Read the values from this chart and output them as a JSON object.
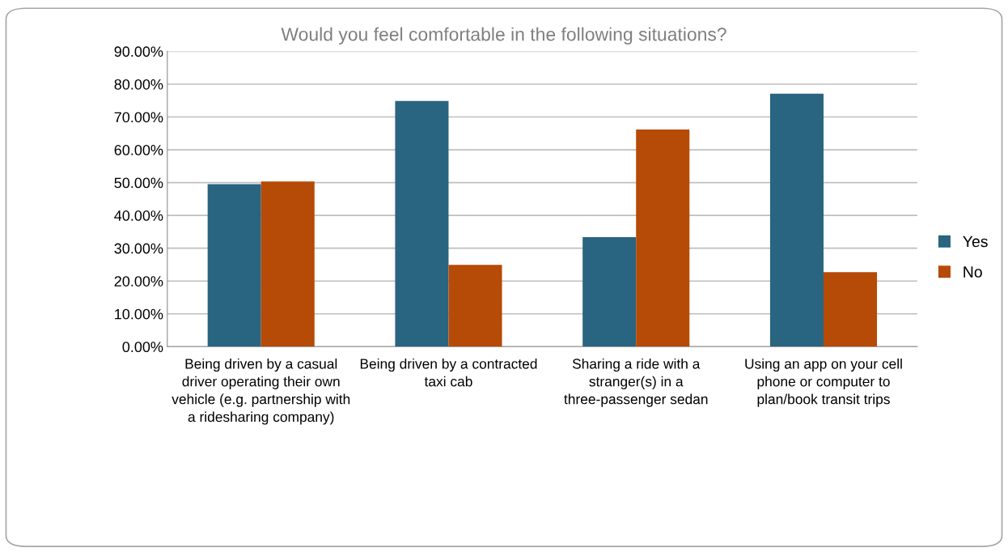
{
  "chart_data": {
    "type": "bar",
    "title": "Would you feel comfortable in the following situations?",
    "categories": [
      "Being driven by a casual driver operating their own vehicle (e.g. partnership with a ridesharing company)",
      "Being driven by a contracted taxi cab",
      "Sharing a ride with a stranger(s) in a three-passenger sedan",
      "Using an app on your cell phone or computer to plan/book transit trips"
    ],
    "series": [
      {
        "name": "Yes",
        "color": "#296480",
        "values": [
          49.5,
          74.9,
          33.4,
          77.1
        ]
      },
      {
        "name": "No",
        "color": "#b64a07",
        "values": [
          50.3,
          24.9,
          66.2,
          22.7
        ]
      }
    ],
    "ylim": [
      0,
      90
    ],
    "yticks": [
      {
        "value": 0,
        "label": "0.00%"
      },
      {
        "value": 10,
        "label": "10.00%"
      },
      {
        "value": 20,
        "label": "20.00%"
      },
      {
        "value": 30,
        "label": "30.00%"
      },
      {
        "value": 40,
        "label": "40.00%"
      },
      {
        "value": 50,
        "label": "50.00%"
      },
      {
        "value": 60,
        "label": "60.00%"
      },
      {
        "value": 70,
        "label": "70.00%"
      },
      {
        "value": 80,
        "label": "80.00%"
      },
      {
        "value": 90,
        "label": "90.00%"
      }
    ],
    "grid": "y",
    "legend": "right"
  }
}
